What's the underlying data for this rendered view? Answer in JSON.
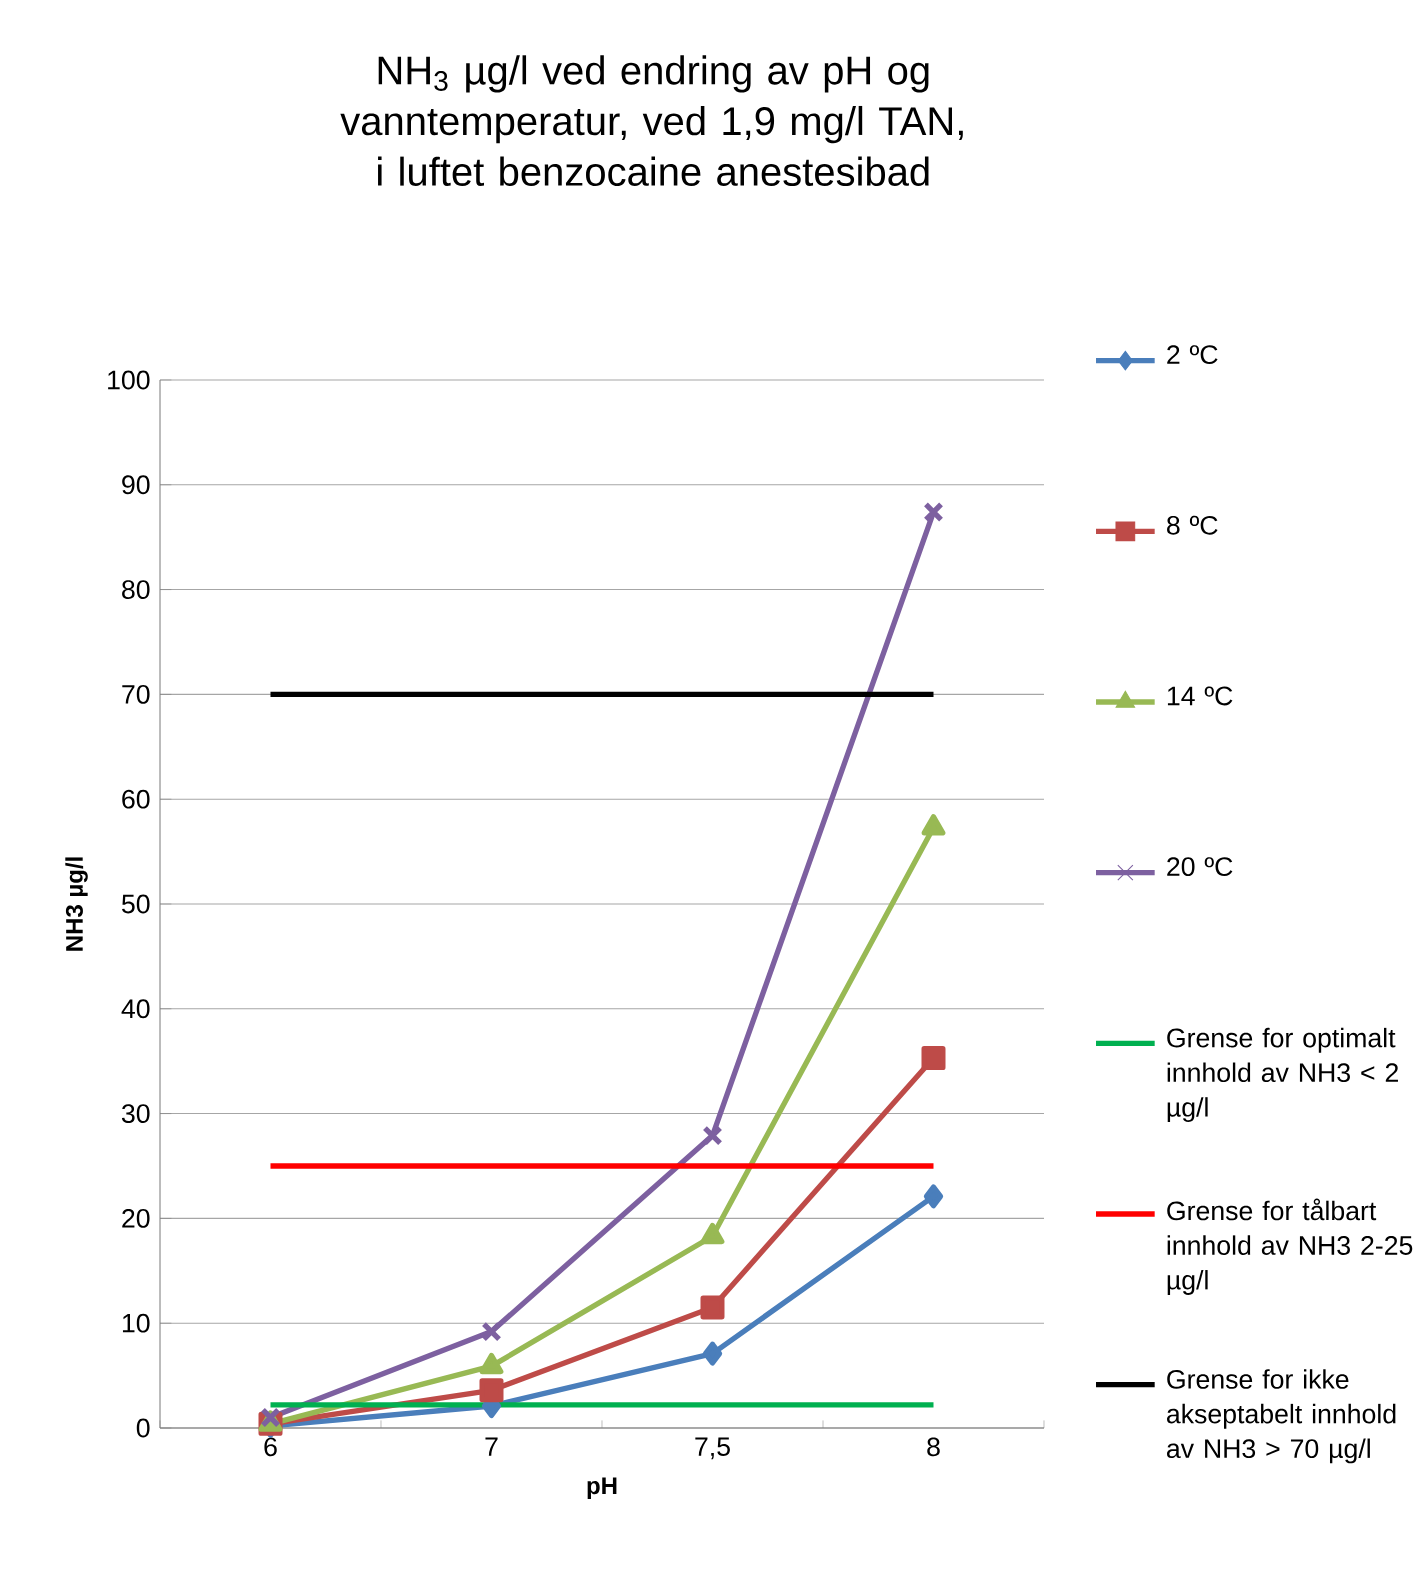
{
  "chart_data": {
    "type": "line",
    "title": "NH$_{3}$ µg/l ved endring av pH og vanntemperatur, ved 1,9 mg/l TAN, i luftet benzocaine anestesibad",
    "xlabel": "pH",
    "ylabel": "NH3 µg/l",
    "categories": [
      "6",
      "7",
      "7,5",
      "8"
    ],
    "series": [
      {
        "name": "2 ºC",
        "color": "#4a7ebb",
        "marker": "diamond",
        "values": [
          0.2,
          2.1,
          7.1,
          22.1
        ]
      },
      {
        "name": "8 ºC",
        "color": "#be4b48",
        "marker": "square",
        "values": [
          0.4,
          3.6,
          11.5,
          35.3
        ]
      },
      {
        "name": "14 ºC",
        "color": "#98b954",
        "marker": "triangle",
        "values": [
          0.4,
          5.9,
          18.3,
          57.3
        ]
      },
      {
        "name": "20 ºC",
        "color": "#7d60a0",
        "marker": "cross",
        "values": [
          1.0,
          9.2,
          27.9,
          87.4
        ]
      },
      {
        "name": "Grense for optimalt innhold av NH3 < 2 µg/l",
        "color": "#00b050",
        "marker": "none",
        "values": [
          2.2,
          2.2,
          2.2,
          2.2
        ]
      },
      {
        "name": "Grense for tålbart innhold av NH3 2-25 µg/l",
        "color": "#ff0000",
        "marker": "none",
        "values": [
          25,
          25,
          25,
          25
        ]
      },
      {
        "name": "Grense for ikke akseptabelt innhold av NH3 > 70 µg/l",
        "color": "#000000",
        "marker": "none",
        "values": [
          70,
          70,
          70,
          70
        ]
      }
    ],
    "ylim": [
      0,
      100
    ],
    "yticks": [
      0,
      10,
      20,
      30,
      40,
      50,
      60,
      70,
      80,
      90,
      100
    ],
    "grid": "y",
    "legend": "right",
    "line_style": "solid"
  }
}
